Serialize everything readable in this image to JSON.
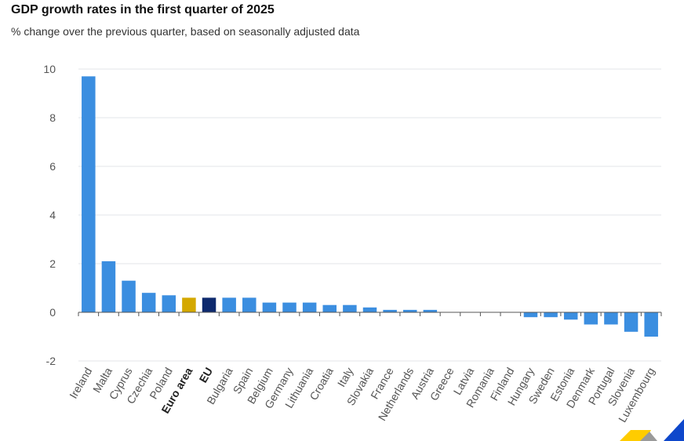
{
  "chart_data": {
    "type": "bar",
    "title": "GDP growth rates in the first quarter of 2025",
    "subtitle": "% change over the previous quarter, based on seasonally adjusted data",
    "xlabel": "",
    "ylabel": "",
    "ylim": [
      -2,
      10
    ],
    "yticks": [
      -2,
      0,
      2,
      4,
      6,
      8,
      10
    ],
    "grid": true,
    "categories": [
      "Ireland",
      "Malta",
      "Cyprus",
      "Czechia",
      "Poland",
      "Euro area",
      "EU",
      "Bulgaria",
      "Spain",
      "Belgium",
      "Germany",
      "Lithuania",
      "Croatia",
      "Italy",
      "Slovakia",
      "France",
      "Netherlands",
      "Austria",
      "Greece",
      "Latvia",
      "Romania",
      "Finland",
      "Hungary",
      "Sweden",
      "Estonia",
      "Denmark",
      "Portugal",
      "Slovenia",
      "Luxembourg"
    ],
    "values": [
      9.7,
      2.1,
      1.3,
      0.8,
      0.7,
      0.6,
      0.6,
      0.6,
      0.6,
      0.4,
      0.4,
      0.4,
      0.3,
      0.3,
      0.2,
      0.1,
      0.1,
      0.1,
      0.0,
      0.0,
      0.0,
      0.0,
      -0.2,
      -0.2,
      -0.3,
      -0.5,
      -0.5,
      -0.8,
      -1.0
    ],
    "highlighted": {
      "Euro area": "#d4a800",
      "EU": "#0e2a6e"
    },
    "bold_labels": [
      "Euro area",
      "EU"
    ]
  },
  "colors": {
    "bar": "#3b8ee0",
    "euro_area": "#d4a800",
    "eu": "#0e2a6e",
    "grid": "#e3e6ea",
    "axis": "#555555",
    "tick_text": "#555555",
    "logo_yellow": "#ffcc00",
    "logo_grey": "#9a9a9a",
    "logo_blue": "#0e47cb"
  }
}
